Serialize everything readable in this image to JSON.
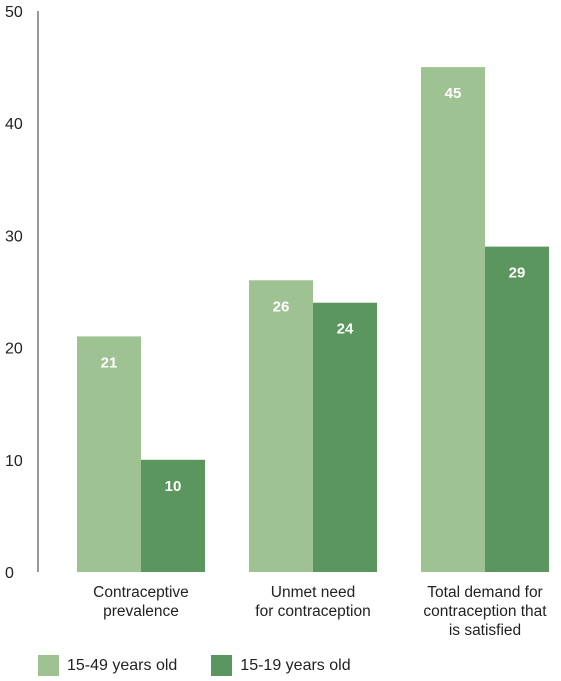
{
  "chart_data": {
    "type": "bar",
    "categories": [
      [
        "Contraceptive",
        "prevalence"
      ],
      [
        "Unmet need",
        "for contraception"
      ],
      [
        "Total demand for",
        "contraception that",
        "is satisfied"
      ]
    ],
    "series": [
      {
        "name": "15-49 years old",
        "color": "#9fc293",
        "values": [
          21,
          26,
          45
        ]
      },
      {
        "name": "15-19 years old",
        "color": "#5a965e",
        "values": [
          10,
          24,
          29
        ]
      }
    ],
    "ylim": [
      0,
      50
    ],
    "yticks": [
      0,
      10,
      20,
      30,
      40,
      50
    ],
    "grid": false,
    "legend_position": "bottom-left"
  }
}
